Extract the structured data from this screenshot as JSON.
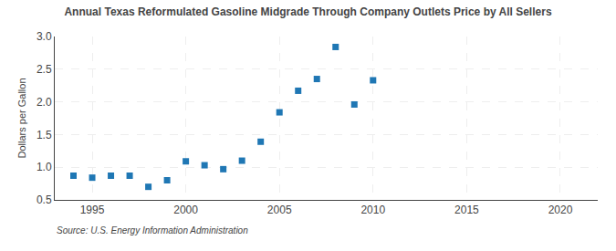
{
  "chart_data": {
    "type": "scatter",
    "title": "Annual Texas Reformulated Gasoline Midgrade Through Company Outlets Price by All Sellers",
    "ylabel": "Dollars per Gallon",
    "annotations": [
      "Source: U.S. Energy Information Administration"
    ],
    "x": [
      1994,
      1995,
      1996,
      1997,
      1998,
      1999,
      2000,
      2001,
      2002,
      2003,
      2004,
      2005,
      2006,
      2007,
      2008,
      2009,
      2010
    ],
    "values": [
      0.87,
      0.84,
      0.87,
      0.87,
      0.7,
      0.8,
      1.09,
      1.03,
      0.97,
      1.1,
      1.39,
      1.84,
      2.17,
      2.35,
      2.84,
      1.96,
      2.33
    ],
    "xlim": [
      1993,
      2022
    ],
    "ylim": [
      0.5,
      3.0
    ],
    "xticks": [
      1995,
      2000,
      2005,
      2010,
      2015,
      2020
    ],
    "yticks": [
      0.5,
      {
        "value": 1.0,
        "label": "1.0"
      },
      1.5,
      {
        "value": 2.0,
        "label": "2.0"
      },
      2.5,
      {
        "value": 3.0,
        "label": "3.0"
      }
    ],
    "marker": "square",
    "grid": true
  }
}
